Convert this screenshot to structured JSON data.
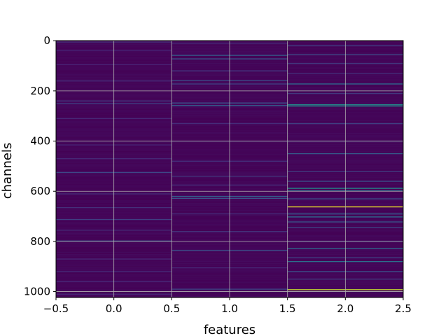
{
  "chart_data": {
    "type": "heatmap",
    "title": "",
    "xlabel": "features",
    "ylabel": "channels",
    "xlim": [
      -0.5,
      2.5
    ],
    "ylim": [
      1023.5,
      -0.5
    ],
    "x_ticks": [
      -0.5,
      0.0,
      0.5,
      1.0,
      1.5,
      2.0,
      2.5
    ],
    "x_tick_labels": [
      "−0.5",
      "0.0",
      "0.5",
      "1.0",
      "1.5",
      "2.0",
      "2.5"
    ],
    "y_ticks": [
      0,
      200,
      400,
      600,
      800,
      1000
    ],
    "y_tick_labels": [
      "0",
      "200",
      "400",
      "600",
      "800",
      "1000"
    ],
    "grid": true,
    "colormap": "viridis",
    "background_color": "#440154",
    "n_rows": 1024,
    "columns": [
      {
        "feature": 0,
        "bright_bands": [
          {
            "channel": 5,
            "value": 0.16
          },
          {
            "channel": 38,
            "value": 0.14
          },
          {
            "channel": 95,
            "value": 0.12
          },
          {
            "channel": 160,
            "value": 0.15
          },
          {
            "channel": 240,
            "value": 0.18
          },
          {
            "channel": 250,
            "value": 0.2
          },
          {
            "channel": 310,
            "value": 0.14
          },
          {
            "channel": 415,
            "value": 0.13
          },
          {
            "channel": 470,
            "value": 0.15
          },
          {
            "channel": 525,
            "value": 0.22
          },
          {
            "channel": 610,
            "value": 0.14
          },
          {
            "channel": 665,
            "value": 0.16
          },
          {
            "channel": 712,
            "value": 0.2
          },
          {
            "channel": 755,
            "value": 0.15
          },
          {
            "channel": 798,
            "value": 0.28
          },
          {
            "channel": 870,
            "value": 0.14
          },
          {
            "channel": 920,
            "value": 0.15
          },
          {
            "channel": 960,
            "value": 0.13
          },
          {
            "channel": 1010,
            "value": 0.14
          }
        ]
      },
      {
        "feature": 1,
        "bright_bands": [
          {
            "channel": 10,
            "value": 0.14
          },
          {
            "channel": 58,
            "value": 0.3
          },
          {
            "channel": 72,
            "value": 0.26
          },
          {
            "channel": 120,
            "value": 0.18
          },
          {
            "channel": 158,
            "value": 0.24
          },
          {
            "channel": 172,
            "value": 0.2
          },
          {
            "channel": 248,
            "value": 0.26
          },
          {
            "channel": 258,
            "value": 0.3
          },
          {
            "channel": 330,
            "value": 0.15
          },
          {
            "channel": 400,
            "value": 0.14
          },
          {
            "channel": 480,
            "value": 0.16
          },
          {
            "channel": 540,
            "value": 0.18
          },
          {
            "channel": 575,
            "value": 0.15
          },
          {
            "channel": 620,
            "value": 0.3
          },
          {
            "channel": 628,
            "value": 0.26
          },
          {
            "channel": 690,
            "value": 0.15
          },
          {
            "channel": 760,
            "value": 0.17
          },
          {
            "channel": 835,
            "value": 0.24
          },
          {
            "channel": 905,
            "value": 0.14
          },
          {
            "channel": 990,
            "value": 0.22
          }
        ]
      },
      {
        "feature": 2,
        "bright_bands": [
          {
            "channel": 20,
            "value": 0.2
          },
          {
            "channel": 55,
            "value": 0.22
          },
          {
            "channel": 90,
            "value": 0.18
          },
          {
            "channel": 130,
            "value": 0.16
          },
          {
            "channel": 172,
            "value": 0.36
          },
          {
            "channel": 210,
            "value": 0.18
          },
          {
            "channel": 255,
            "value": 0.5
          },
          {
            "channel": 260,
            "value": 0.5
          },
          {
            "channel": 330,
            "value": 0.2
          },
          {
            "channel": 400,
            "value": 0.18
          },
          {
            "channel": 450,
            "value": 0.3
          },
          {
            "channel": 520,
            "value": 0.2
          },
          {
            "channel": 560,
            "value": 0.26
          },
          {
            "channel": 588,
            "value": 0.5
          },
          {
            "channel": 598,
            "value": 0.4
          },
          {
            "channel": 630,
            "value": 0.26
          },
          {
            "channel": 662,
            "value": 0.98
          },
          {
            "channel": 690,
            "value": 0.3
          },
          {
            "channel": 702,
            "value": 0.36
          },
          {
            "channel": 722,
            "value": 0.28
          },
          {
            "channel": 745,
            "value": 0.22
          },
          {
            "channel": 800,
            "value": 0.2
          },
          {
            "channel": 828,
            "value": 0.36
          },
          {
            "channel": 865,
            "value": 0.22
          },
          {
            "channel": 880,
            "value": 0.38
          },
          {
            "channel": 920,
            "value": 0.26
          },
          {
            "channel": 950,
            "value": 0.2
          },
          {
            "channel": 992,
            "value": 0.92
          }
        ]
      }
    ]
  }
}
